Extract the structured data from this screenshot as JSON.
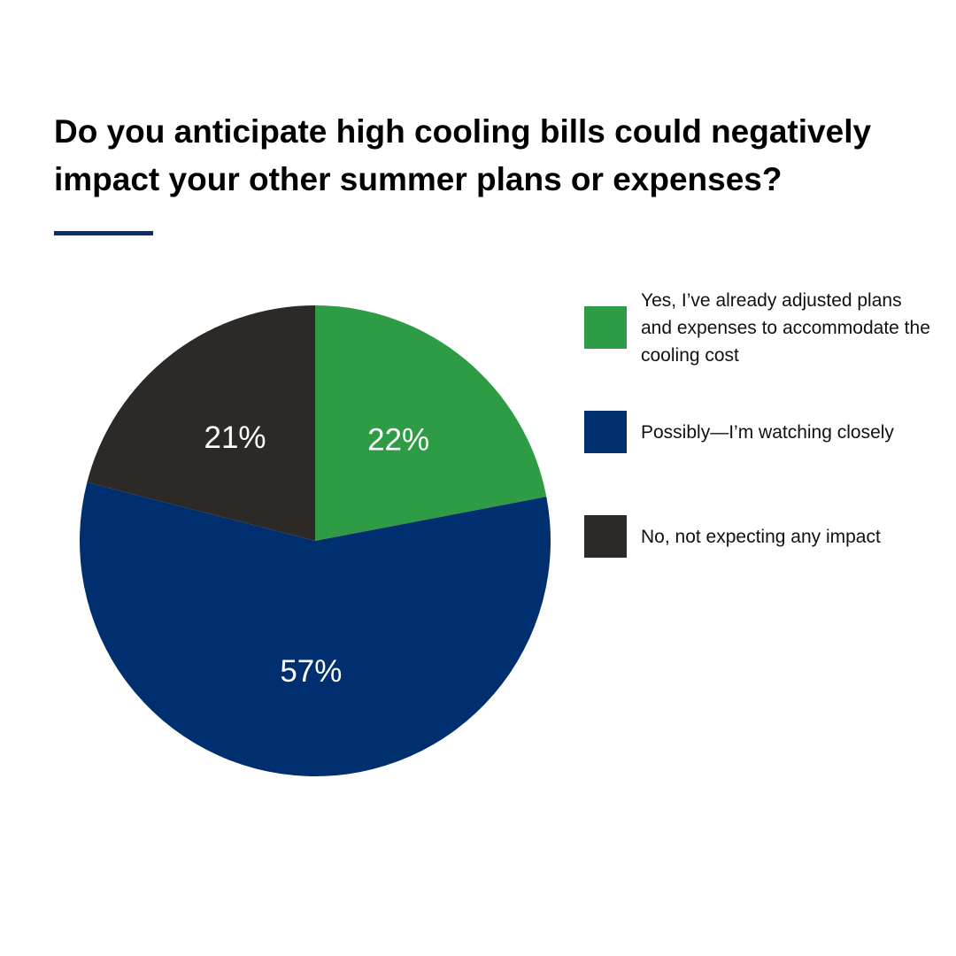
{
  "chart_data": {
    "type": "pie",
    "title": "Do you anticipate high cooling bills could negatively impact your other summer plans or expenses?",
    "categories": [
      "Yes, I’ve already adjusted plans and expenses to accommodate the cooling cost",
      "Possibly—I’m watching closely",
      "No, not expecting any impact"
    ],
    "values": [
      22,
      57,
      21
    ],
    "value_labels": [
      "22%",
      "57%",
      "21%"
    ],
    "colors": [
      "#2e9b45",
      "#002f6f",
      "#2d2926"
    ],
    "legend": "right",
    "start": "top, clockwise"
  },
  "accent_color": "#0b2e6b"
}
